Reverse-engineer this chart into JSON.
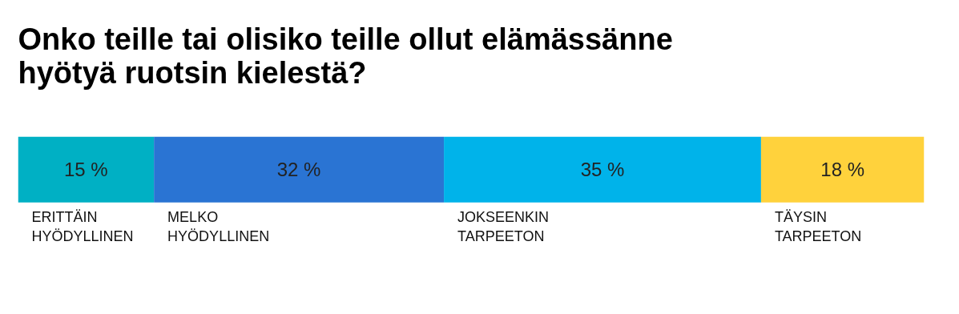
{
  "chart_data": {
    "type": "bar",
    "orientation": "horizontal",
    "stacked": true,
    "title": "Onko teille tai olisiko teille ollut elämässänne\nhyötyä ruotsin kielestä?",
    "categories": [
      null
    ],
    "xlim": [
      0,
      100
    ],
    "tick_labels": false,
    "grid": false,
    "series": [
      {
        "name": "ERITTÄIN\nHYÖDYLLINEN",
        "color": "#00b0c4",
        "values": [
          15
        ],
        "value_labels": [
          "15 %"
        ]
      },
      {
        "name": "MELKO\nHYÖDYLLINEN",
        "color": "#2a74d3",
        "values": [
          32
        ],
        "value_labels": [
          "32 %"
        ]
      },
      {
        "name": "JOKSEENKIN\nTARPEETON",
        "color": "#00b3ea",
        "values": [
          35
        ],
        "value_labels": [
          "35 %"
        ]
      },
      {
        "name": "TÄYSIN\nTARPEETON",
        "color": "#ffd23c",
        "values": [
          18
        ],
        "value_labels": [
          "18 %"
        ]
      }
    ]
  }
}
